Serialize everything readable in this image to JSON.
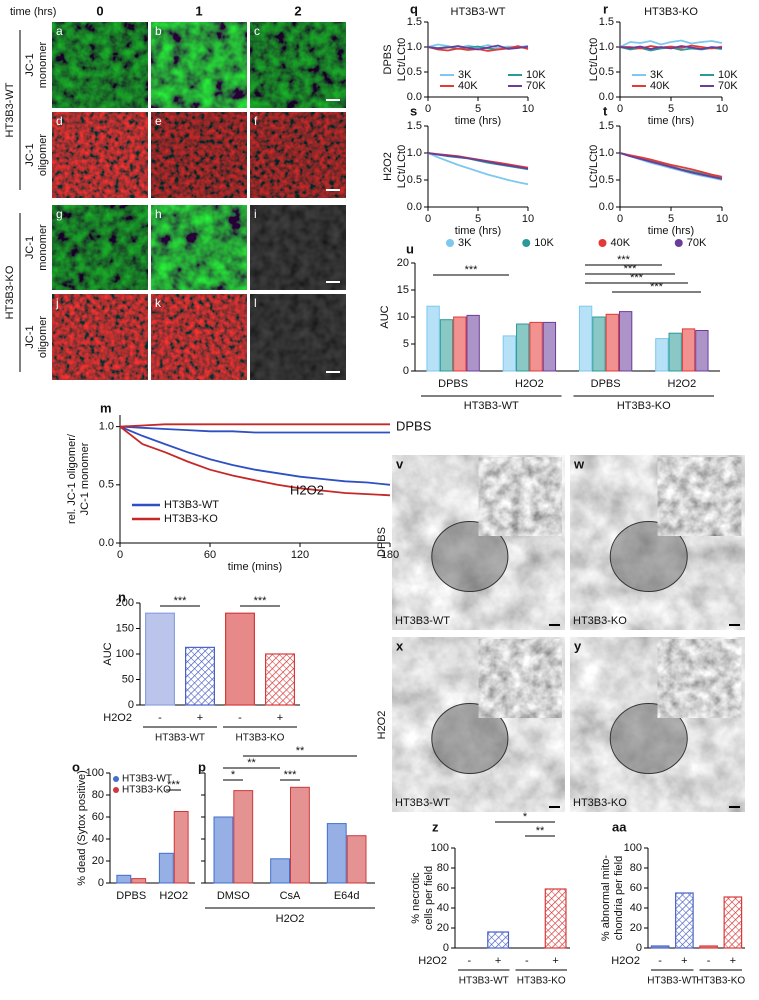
{
  "figure": {
    "jc1": {
      "label": "time (hrs)",
      "times": [
        "0",
        "1",
        "2"
      ],
      "groups": [
        "HT3B3-WT",
        "HT3B3-KO"
      ],
      "stains": [
        [
          "JC-1",
          "monomer"
        ],
        [
          "JC-1",
          "oligomer"
        ]
      ],
      "panels": [
        "a",
        "b",
        "c",
        "d",
        "e",
        "f",
        "g",
        "h",
        "i",
        "j",
        "k",
        "l"
      ]
    },
    "tem": {
      "conditions": [
        "DPBS",
        "H2O2"
      ],
      "groups": [
        "HT3B3-WT",
        "HT3B3-KO"
      ],
      "panels": [
        "v",
        "w",
        "x",
        "y"
      ]
    }
  },
  "chart_data": [
    {
      "type": "line",
      "label": "q",
      "title": "HT3B3-WT",
      "row_label": "DPBS",
      "xlabel": "time (hrs)",
      "ylabel": "LCt/LCt0",
      "x": [
        0,
        1,
        2,
        3,
        4,
        5,
        6,
        7,
        8,
        9,
        10
      ],
      "xlim": [
        0,
        10
      ],
      "xticks": [
        0,
        5,
        10
      ],
      "ylim": [
        0,
        1.5
      ],
      "yticks": [
        {
          "value": 0,
          "label": "0.0"
        },
        0.5,
        {
          "value": 1,
          "label": "1.0"
        },
        1.5
      ],
      "legend": "lower",
      "series": [
        {
          "name": "3K",
          "color": "#7cc8ee",
          "values": [
            1,
            1.05,
            1.02,
            0.97,
            1.03,
            0.99,
            1.04,
            0.98,
            1.01,
            1.0,
            1.02
          ]
        },
        {
          "name": "10K",
          "color": "#2a9a98",
          "values": [
            1,
            0.98,
            1.0,
            0.96,
            0.99,
            1.01,
            0.97,
            0.95,
            0.98,
            1.0,
            0.97
          ]
        },
        {
          "name": "40K",
          "color": "#e53935",
          "values": [
            1,
            0.95,
            0.93,
            0.97,
            0.94,
            0.96,
            0.92,
            0.95,
            0.97,
            1.02,
            0.96
          ]
        },
        {
          "name": "70K",
          "color": "#6a3d9a",
          "values": [
            1,
            0.97,
            0.99,
            1.02,
            0.98,
            0.95,
            0.99,
            1.03,
            0.96,
            0.98,
            1.01
          ]
        }
      ]
    },
    {
      "type": "line",
      "label": "r",
      "title": "HT3B3-KO",
      "xlabel": "time (hrs)",
      "ylabel": "LCt/LCt0",
      "x": [
        0,
        1,
        2,
        3,
        4,
        5,
        6,
        7,
        8,
        9,
        10
      ],
      "xlim": [
        0,
        10
      ],
      "xticks": [
        0,
        5,
        10
      ],
      "ylim": [
        0,
        1.5
      ],
      "yticks": [
        {
          "value": 0,
          "label": "0.0"
        },
        0.5,
        {
          "value": 1,
          "label": "1.0"
        },
        1.5
      ],
      "legend": "lower",
      "series": [
        {
          "name": "3K",
          "color": "#7cc8ee",
          "values": [
            1,
            1.1,
            1.08,
            1.12,
            1.05,
            1.1,
            1.13,
            1.07,
            1.1,
            1.12,
            1.08
          ]
        },
        {
          "name": "10K",
          "color": "#2a9a98",
          "values": [
            1,
            0.95,
            0.98,
            0.93,
            0.97,
            0.99,
            0.94,
            0.97,
            0.95,
            0.98,
            0.96
          ]
        },
        {
          "name": "40K",
          "color": "#e53935",
          "values": [
            1,
            1.0,
            0.97,
            1.02,
            0.99,
            1.01,
            0.98,
            1.03,
            1.0,
            0.97,
            1.01
          ]
        },
        {
          "name": "70K",
          "color": "#6a3d9a",
          "values": [
            1,
            0.98,
            1.01,
            0.96,
            1.0,
            0.97,
            1.02,
            0.99,
            0.96,
            1.0,
            0.98
          ]
        }
      ]
    },
    {
      "type": "line",
      "label": "s",
      "row_label": "H2O2",
      "xlabel": "time (hrs)",
      "ylabel": "LCt/LCt0",
      "x": [
        0,
        1,
        2,
        3,
        4,
        5,
        6,
        7,
        8,
        9,
        10
      ],
      "xlim": [
        0,
        10
      ],
      "xticks": [
        0,
        5,
        10
      ],
      "ylim": [
        0,
        1.5
      ],
      "yticks": [
        {
          "value": 0,
          "label": "0.0"
        },
        0.5,
        {
          "value": 1,
          "label": "1.0"
        },
        1.5
      ],
      "series": [
        {
          "color": "#7cc8ee",
          "values": [
            1,
            0.92,
            0.85,
            0.78,
            0.72,
            0.66,
            0.6,
            0.55,
            0.5,
            0.46,
            0.42
          ]
        },
        {
          "color": "#2a9a98",
          "values": [
            1,
            0.97,
            0.94,
            0.92,
            0.9,
            0.86,
            0.82,
            0.79,
            0.76,
            0.73,
            0.7
          ]
        },
        {
          "color": "#e53935",
          "values": [
            1,
            0.98,
            0.96,
            0.94,
            0.91,
            0.88,
            0.85,
            0.82,
            0.79,
            0.76,
            0.73
          ]
        },
        {
          "color": "#6a3d9a",
          "values": [
            1,
            0.97,
            0.95,
            0.93,
            0.9,
            0.87,
            0.84,
            0.8,
            0.77,
            0.74,
            0.71
          ]
        }
      ]
    },
    {
      "type": "line",
      "label": "t",
      "xlabel": "time (hrs)",
      "ylabel": "LCt/LCt0",
      "x": [
        0,
        1,
        2,
        3,
        4,
        5,
        6,
        7,
        8,
        9,
        10
      ],
      "xlim": [
        0,
        10
      ],
      "xticks": [
        0,
        5,
        10
      ],
      "ylim": [
        0,
        1.5
      ],
      "yticks": [
        {
          "value": 0,
          "label": "0.0"
        },
        0.5,
        {
          "value": 1,
          "label": "1.0"
        },
        1.5
      ],
      "series": [
        {
          "color": "#7cc8ee",
          "values": [
            1,
            0.94,
            0.88,
            0.82,
            0.77,
            0.72,
            0.67,
            0.62,
            0.58,
            0.54,
            0.5
          ]
        },
        {
          "color": "#2a9a98",
          "values": [
            1,
            0.95,
            0.9,
            0.85,
            0.8,
            0.75,
            0.7,
            0.66,
            0.62,
            0.58,
            0.55
          ]
        },
        {
          "color": "#e53935",
          "values": [
            1,
            0.96,
            0.92,
            0.88,
            0.83,
            0.78,
            0.74,
            0.7,
            0.65,
            0.6,
            0.56
          ]
        },
        {
          "color": "#6a3d9a",
          "values": [
            1,
            0.94,
            0.89,
            0.84,
            0.79,
            0.74,
            0.69,
            0.64,
            0.6,
            0.56,
            0.52
          ]
        }
      ]
    },
    {
      "type": "grouped_bar",
      "label": "u",
      "ylabel": "AUC",
      "categories": [
        "DPBS",
        "H2O2",
        "DPBS",
        "H2O2"
      ],
      "groups": [
        "HT3B3-WT",
        "HT3B3-KO"
      ],
      "ylim": [
        0,
        20
      ],
      "yticks": [
        0,
        5,
        10,
        15,
        20
      ],
      "legend": "top",
      "significance": [
        "***",
        "***",
        "***",
        "***",
        "***"
      ],
      "series": [
        {
          "name": "3K",
          "color": "#7cc8ee",
          "values": [
            12,
            6.5,
            12,
            6
          ]
        },
        {
          "name": "10K",
          "color": "#2a9a98",
          "values": [
            9.5,
            8.7,
            10,
            7
          ]
        },
        {
          "name": "40K",
          "color": "#e53935",
          "values": [
            10,
            9,
            10.5,
            7.8
          ]
        },
        {
          "name": "70K",
          "color": "#6a3d9a",
          "values": [
            10.3,
            9,
            11,
            7.5
          ]
        }
      ]
    },
    {
      "type": "line",
      "label": "m",
      "xlabel": "time (mins)",
      "ylabel": [
        "rel. JC-1 oligomer/",
        "JC-1 monomer"
      ],
      "x": [
        0,
        15,
        30,
        45,
        60,
        75,
        90,
        105,
        120,
        135,
        150,
        165,
        180
      ],
      "xlim": [
        0,
        180
      ],
      "xticks": [
        0,
        60,
        120,
        180
      ],
      "ylim": [
        0,
        1.1
      ],
      "yticks": [
        {
          "value": 0,
          "label": "0.0"
        },
        0.5,
        {
          "value": 1,
          "label": "1.0"
        }
      ],
      "annotations": [
        "DPBS",
        "H2O2"
      ],
      "legend": "lower left",
      "series": [
        {
          "name": "HT3B3-WT",
          "color": "#2f4fc4",
          "values": [
            1,
            0.92,
            0.85,
            0.78,
            0.72,
            0.67,
            0.63,
            0.6,
            0.57,
            0.55,
            0.53,
            0.52,
            0.5
          ],
          "values_dpbs": [
            1,
            0.99,
            0.98,
            0.97,
            0.96,
            0.96,
            0.95,
            0.95,
            0.95,
            0.95,
            0.95,
            0.95,
            0.95
          ]
        },
        {
          "name": "HT3B3-KO",
          "color": "#c62828",
          "values": [
            1,
            0.85,
            0.78,
            0.7,
            0.63,
            0.58,
            0.54,
            0.5,
            0.47,
            0.45,
            0.43,
            0.42,
            0.41
          ],
          "values_dpbs": [
            1,
            1.01,
            1.02,
            1.02,
            1.02,
            1.02,
            1.02,
            1.02,
            1.02,
            1.02,
            1.02,
            1.02,
            1.02
          ]
        }
      ]
    },
    {
      "type": "bar",
      "label": "n",
      "ylabel": "AUC",
      "categories": [
        "-",
        "+",
        "-",
        "+"
      ],
      "xlabel": "H2O2",
      "groups": [
        "HT3B3-WT",
        "HT3B3-KO"
      ],
      "values": [
        180,
        113,
        180,
        100
      ],
      "colors": [
        "#8e9fe0",
        "#4a62c8",
        "#d83a3a",
        "#d83a3a"
      ],
      "hatch": [
        false,
        true,
        false,
        true
      ],
      "ylim": [
        0,
        200
      ],
      "yticks": [
        0,
        50,
        100,
        150,
        200
      ],
      "significance": [
        "***",
        "***"
      ]
    },
    {
      "type": "grouped_bar",
      "label": "o",
      "ylabel": "% dead (Sytox positive)",
      "categories": [
        "DPBS",
        "H2O2"
      ],
      "ylim": [
        0,
        100
      ],
      "yticks": [
        0,
        20,
        40,
        60,
        80,
        100
      ],
      "legend": "upper left",
      "significance": [
        "***"
      ],
      "series": [
        {
          "name": "HT3B3-WT",
          "color": "#3f6fcf",
          "values": [
            7,
            27
          ]
        },
        {
          "name": "HT3B3-KO",
          "color": "#d0383a",
          "values": [
            4,
            65
          ]
        }
      ]
    },
    {
      "type": "grouped_bar",
      "label": "p",
      "categories": [
        "DMSO",
        "CsA",
        "E64d"
      ],
      "xlabel": "H2O2",
      "ylim": [
        0,
        100
      ],
      "yticks": [
        0,
        20,
        40,
        60,
        80,
        100
      ],
      "significance": [
        "*",
        "**",
        "***",
        "**"
      ],
      "series": [
        {
          "color": "#3f6fcf",
          "values": [
            60,
            22,
            54
          ]
        },
        {
          "color": "#d0383a",
          "values": [
            84,
            87,
            43
          ]
        }
      ]
    },
    {
      "type": "bar",
      "label": "z",
      "ylabel": [
        "% necrotic",
        "cells per field"
      ],
      "categories": [
        "-",
        "+",
        "-",
        "+"
      ],
      "xlabel": "H2O2",
      "groups": [
        "HT3B3-WT",
        "HT3B3-KO"
      ],
      "values": [
        0,
        16,
        0,
        59
      ],
      "colors": [
        "#4a62c8",
        "#4a62c8",
        "#d83a3a",
        "#d83a3a"
      ],
      "hatch": [
        false,
        true,
        false,
        true
      ],
      "ylim": [
        0,
        100
      ],
      "yticks": [
        0,
        20,
        40,
        60,
        80,
        100
      ],
      "significance": [
        "*",
        "**"
      ]
    },
    {
      "type": "bar",
      "label": "aa",
      "ylabel": [
        "% abnormal mito-",
        "chondria per field"
      ],
      "categories": [
        "-",
        "+",
        "-",
        "+"
      ],
      "xlabel": "H2O2",
      "groups": [
        "HT3B3-WT",
        "HT3B3-KO"
      ],
      "values": [
        2,
        55,
        2,
        51
      ],
      "colors": [
        "#4a62c8",
        "#4a62c8",
        "#d83a3a",
        "#d83a3a"
      ],
      "hatch": [
        false,
        true,
        false,
        true
      ],
      "ylim": [
        0,
        100
      ],
      "yticks": [
        0,
        20,
        40,
        60,
        80,
        100
      ]
    }
  ]
}
